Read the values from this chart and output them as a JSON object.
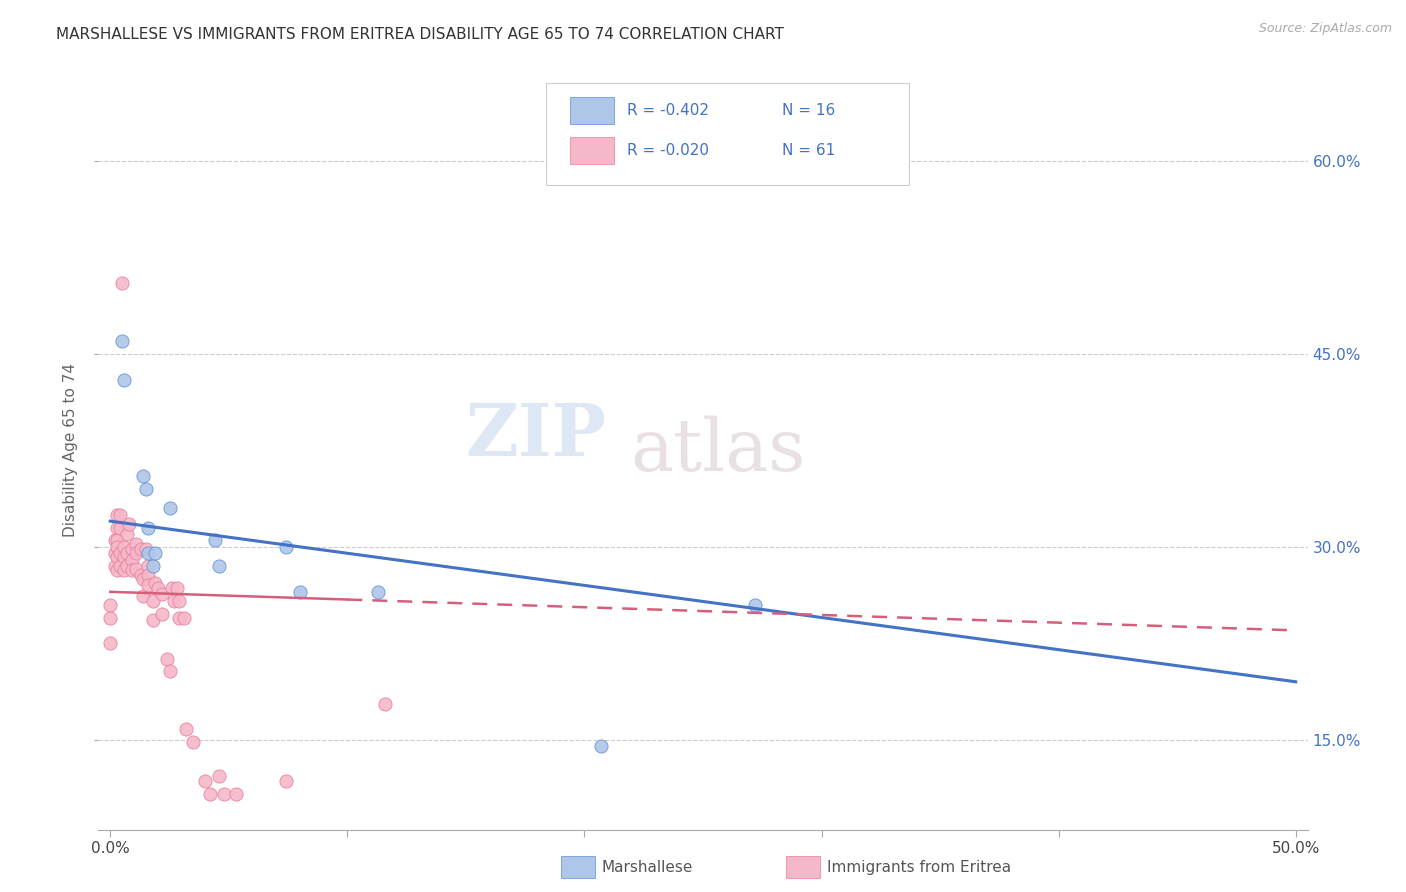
{
  "title": "MARSHALLESE VS IMMIGRANTS FROM ERITREA DISABILITY AGE 65 TO 74 CORRELATION CHART",
  "source": "Source: ZipAtlas.com",
  "ylabel": "Disability Age 65 to 74",
  "xlim": [
    -0.005,
    0.505
  ],
  "ylim": [
    0.08,
    0.67
  ],
  "xticks": [
    0.0,
    0.5
  ],
  "xticklabels": [
    "0.0%",
    "50.0%"
  ],
  "yticks_right": [
    0.15,
    0.3,
    0.45,
    0.6
  ],
  "yticklabels_right": [
    "15.0%",
    "30.0%",
    "45.0%",
    "60.0%"
  ],
  "blue_fill": "#aec6e8",
  "pink_fill": "#f5b8c8",
  "blue_edge": "#5b8ed6",
  "pink_edge": "#e87a9a",
  "blue_line": "#4472C4",
  "pink_line": "#d45f7a",
  "watermark_zip": "ZIP",
  "watermark_atlas": "atlas",
  "legend_r_blue": "R = -0.402",
  "legend_n_blue": "N = 16",
  "legend_r_pink": "R = -0.020",
  "legend_n_pink": "N = 61",
  "legend_label_blue": "Marshallese",
  "legend_label_pink": "Immigrants from Eritrea",
  "blue_trend_x0": 0.0,
  "blue_trend_y0": 0.32,
  "blue_trend_x1": 0.5,
  "blue_trend_y1": 0.195,
  "pink_trend_x0": 0.0,
  "pink_trend_y0": 0.265,
  "pink_trend_x1": 0.5,
  "pink_trend_y1": 0.235,
  "marshallese_x": [
    0.005,
    0.006,
    0.014,
    0.015,
    0.016,
    0.016,
    0.018,
    0.019,
    0.025,
    0.044,
    0.046,
    0.074,
    0.08,
    0.113,
    0.272,
    0.207
  ],
  "marshallese_y": [
    0.46,
    0.43,
    0.355,
    0.345,
    0.315,
    0.295,
    0.285,
    0.295,
    0.33,
    0.305,
    0.285,
    0.3,
    0.265,
    0.265,
    0.255,
    0.145
  ],
  "eritrea_x": [
    0.0,
    0.0,
    0.0,
    0.002,
    0.002,
    0.002,
    0.003,
    0.003,
    0.003,
    0.003,
    0.003,
    0.003,
    0.004,
    0.004,
    0.004,
    0.004,
    0.005,
    0.006,
    0.006,
    0.006,
    0.007,
    0.007,
    0.007,
    0.008,
    0.009,
    0.009,
    0.009,
    0.011,
    0.011,
    0.011,
    0.013,
    0.013,
    0.014,
    0.014,
    0.015,
    0.016,
    0.016,
    0.016,
    0.018,
    0.018,
    0.019,
    0.02,
    0.022,
    0.022,
    0.024,
    0.025,
    0.026,
    0.027,
    0.028,
    0.029,
    0.029,
    0.031,
    0.032,
    0.035,
    0.04,
    0.042,
    0.046,
    0.048,
    0.053,
    0.074,
    0.116
  ],
  "eritrea_y": [
    0.255,
    0.245,
    0.225,
    0.305,
    0.295,
    0.285,
    0.325,
    0.315,
    0.305,
    0.3,
    0.292,
    0.282,
    0.325,
    0.315,
    0.295,
    0.285,
    0.505,
    0.3,
    0.292,
    0.282,
    0.31,
    0.295,
    0.285,
    0.318,
    0.298,
    0.29,
    0.282,
    0.283,
    0.302,
    0.295,
    0.298,
    0.278,
    0.275,
    0.262,
    0.298,
    0.285,
    0.278,
    0.27,
    0.258,
    0.243,
    0.272,
    0.268,
    0.263,
    0.248,
    0.213,
    0.203,
    0.268,
    0.258,
    0.268,
    0.258,
    0.245,
    0.245,
    0.158,
    0.148,
    0.118,
    0.108,
    0.122,
    0.108,
    0.108,
    0.118,
    0.178
  ]
}
